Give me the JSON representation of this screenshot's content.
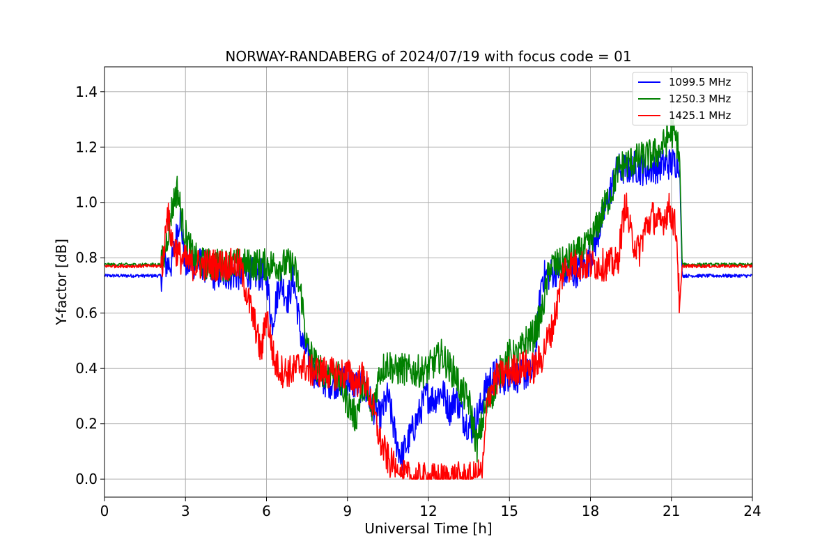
{
  "chart_data": {
    "type": "line",
    "title": "NORWAY-RANDABERG of 2024/07/19 with focus code = 01",
    "xlabel": "Universal Time [h]",
    "ylabel": "Y-factor [dB]",
    "xlim": [
      0,
      24
    ],
    "ylim": [
      -0.065,
      1.49
    ],
    "xticks": [
      0,
      3,
      6,
      9,
      12,
      15,
      18,
      21,
      24
    ],
    "yticks": [
      0.0,
      0.2,
      0.4,
      0.6,
      0.8,
      1.0,
      1.2,
      1.4
    ],
    "ytick_labels": [
      "0.0",
      "0.2",
      "0.4",
      "0.6",
      "0.8",
      "1.0",
      "1.2",
      "1.4"
    ],
    "grid": true,
    "legend_position": "top-right",
    "series": [
      {
        "name": "1099.5 MHz",
        "color": "#0000ff",
        "x": [
          0,
          2.1,
          2.2,
          2.5,
          2.8,
          3.0,
          3.3,
          3.6,
          4.0,
          5.0,
          5.3,
          5.6,
          6.0,
          6.2,
          6.5,
          6.8,
          7.0,
          7.3,
          7.6,
          7.8,
          8.0,
          8.3,
          8.6,
          9.0,
          9.3,
          9.6,
          9.9,
          10.2,
          10.5,
          10.8,
          11.0,
          11.3,
          11.6,
          11.9,
          12.2,
          12.5,
          12.8,
          13.0,
          13.3,
          13.6,
          13.9,
          14.2,
          14.5,
          14.8,
          15.0,
          15.3,
          15.6,
          15.9,
          16.2,
          16.5,
          16.8,
          17.0,
          17.3,
          17.6,
          17.9,
          18.2,
          18.5,
          18.8,
          19.0,
          19.3,
          19.6,
          19.9,
          20.2,
          20.5,
          20.8,
          21.0,
          21.3,
          21.4,
          22.0,
          23.0,
          24.0
        ],
        "y": [
          0.735,
          0.735,
          0.775,
          0.78,
          0.96,
          0.77,
          0.78,
          0.78,
          0.74,
          0.74,
          0.75,
          0.74,
          0.735,
          0.56,
          0.72,
          0.65,
          0.73,
          0.5,
          0.43,
          0.38,
          0.36,
          0.35,
          0.35,
          0.36,
          0.34,
          0.33,
          0.27,
          0.22,
          0.3,
          0.14,
          0.08,
          0.15,
          0.22,
          0.3,
          0.29,
          0.32,
          0.25,
          0.3,
          0.22,
          0.18,
          0.25,
          0.35,
          0.38,
          0.36,
          0.38,
          0.37,
          0.38,
          0.38,
          0.73,
          0.74,
          0.76,
          0.75,
          0.74,
          0.76,
          0.78,
          0.86,
          0.96,
          1.06,
          1.12,
          1.12,
          1.13,
          1.12,
          1.12,
          1.13,
          1.14,
          1.14,
          1.15,
          0.735,
          0.735,
          0.735,
          0.735
        ]
      },
      {
        "name": "1250.3 MHz",
        "color": "#008000",
        "x": [
          0,
          2.1,
          2.2,
          2.5,
          2.7,
          2.9,
          3.1,
          3.3,
          3.6,
          4.0,
          5.0,
          5.5,
          6.0,
          6.5,
          7.0,
          7.3,
          7.5,
          7.8,
          8.0,
          8.3,
          8.6,
          9.0,
          9.3,
          9.6,
          9.9,
          10.2,
          10.5,
          10.8,
          11.0,
          11.3,
          11.6,
          11.9,
          12.2,
          12.5,
          12.8,
          13.0,
          13.2,
          13.5,
          13.8,
          14.1,
          14.4,
          14.7,
          15.0,
          15.3,
          15.6,
          15.9,
          16.2,
          16.5,
          16.8,
          17.0,
          17.3,
          17.6,
          17.9,
          18.2,
          18.5,
          18.8,
          19.0,
          19.3,
          19.6,
          19.9,
          20.2,
          20.5,
          20.8,
          21.0,
          21.2,
          21.3,
          21.4,
          22.0,
          23.0,
          24.0
        ],
        "y": [
          0.775,
          0.775,
          0.8,
          0.98,
          1.05,
          0.92,
          0.85,
          0.8,
          0.78,
          0.775,
          0.775,
          0.775,
          0.775,
          0.775,
          0.775,
          0.66,
          0.48,
          0.42,
          0.39,
          0.39,
          0.38,
          0.28,
          0.22,
          0.35,
          0.24,
          0.39,
          0.42,
          0.39,
          0.4,
          0.39,
          0.39,
          0.39,
          0.42,
          0.45,
          0.4,
          0.38,
          0.32,
          0.28,
          0.12,
          0.25,
          0.32,
          0.4,
          0.45,
          0.44,
          0.5,
          0.52,
          0.6,
          0.77,
          0.775,
          0.78,
          0.8,
          0.82,
          0.84,
          0.9,
          0.98,
          1.04,
          1.12,
          1.14,
          1.15,
          1.16,
          1.17,
          1.18,
          1.22,
          1.26,
          1.22,
          1.18,
          0.775,
          0.775,
          0.775,
          0.775
        ]
      },
      {
        "name": "1425.1 MHz",
        "color": "#ff0000",
        "x": [
          0,
          2.1,
          2.2,
          2.3,
          2.5,
          2.8,
          3.2,
          4.0,
          5.0,
          5.2,
          5.4,
          5.6,
          5.8,
          6.0,
          6.3,
          6.6,
          7.0,
          7.3,
          7.6,
          8.0,
          8.5,
          9.0,
          9.3,
          9.6,
          9.9,
          10.2,
          10.5,
          10.8,
          11.0,
          11.5,
          12.0,
          12.5,
          13.0,
          13.5,
          13.8,
          14.0,
          14.2,
          14.5,
          14.8,
          15.0,
          15.3,
          15.6,
          15.9,
          16.2,
          16.4,
          16.6,
          16.8,
          17.0,
          17.3,
          17.6,
          18.0,
          18.5,
          19.0,
          19.3,
          19.5,
          19.8,
          20.0,
          20.3,
          20.6,
          20.9,
          21.1,
          21.2,
          21.3,
          21.4,
          22.0,
          23.0,
          24.0
        ],
        "y": [
          0.77,
          0.77,
          0.8,
          0.98,
          0.86,
          0.8,
          0.775,
          0.775,
          0.775,
          0.7,
          0.62,
          0.55,
          0.45,
          0.6,
          0.42,
          0.39,
          0.39,
          0.42,
          0.39,
          0.39,
          0.38,
          0.38,
          0.35,
          0.37,
          0.28,
          0.14,
          0.07,
          0.03,
          0.01,
          0.0,
          0.0,
          0.0,
          0.005,
          0.0,
          0.01,
          0.02,
          0.3,
          0.36,
          0.38,
          0.39,
          0.4,
          0.41,
          0.4,
          0.44,
          0.5,
          0.55,
          0.65,
          0.76,
          0.775,
          0.775,
          0.775,
          0.775,
          0.78,
          1.0,
          0.88,
          0.82,
          0.9,
          0.95,
          0.92,
          0.98,
          0.93,
          0.88,
          0.62,
          0.77,
          0.77,
          0.77,
          0.77
        ]
      }
    ]
  }
}
